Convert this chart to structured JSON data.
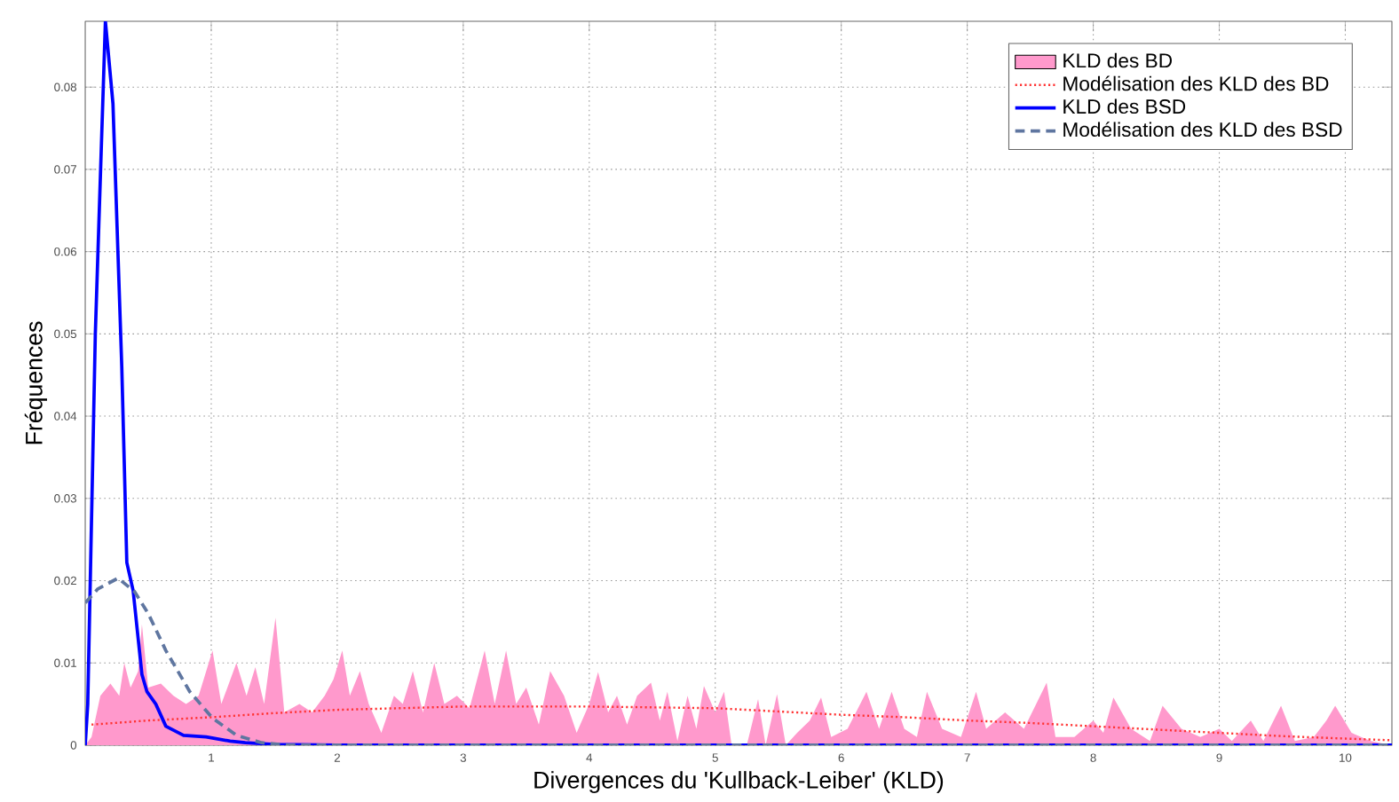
{
  "chart_data": {
    "type": "line",
    "xlabel": "Divergences du 'Kullback-Leiber' (KLD)",
    "ylabel": "Fréquences",
    "xlim": [
      0,
      10.37
    ],
    "ylim": [
      0,
      0.088
    ],
    "xticks": [
      1,
      2,
      3,
      4,
      5,
      6,
      7,
      8,
      9,
      10
    ],
    "yticks": [
      0,
      0.01,
      0.02,
      0.03,
      0.04,
      0.05,
      0.06,
      0.07,
      0.08
    ],
    "grid": true,
    "legend": "top right",
    "marker": "none",
    "series": [
      {
        "name": "KLD des BD",
        "type": "area",
        "color": "#ff99cc",
        "x": [
          0,
          0.05,
          0.12,
          0.2,
          0.27,
          0.31,
          0.36,
          0.42,
          0.45,
          0.5,
          0.6,
          0.7,
          0.8,
          0.9,
          1.01,
          1.08,
          1.2,
          1.28,
          1.35,
          1.42,
          1.51,
          1.58,
          1.7,
          1.8,
          1.9,
          1.97,
          2.04,
          2.1,
          2.18,
          2.25,
          2.35,
          2.45,
          2.52,
          2.6,
          2.68,
          2.77,
          2.85,
          2.95,
          3.05,
          3.17,
          3.25,
          3.34,
          3.42,
          3.5,
          3.6,
          3.69,
          3.8,
          3.9,
          4.0,
          4.07,
          4.15,
          4.22,
          4.3,
          4.38,
          4.49,
          4.56,
          4.62,
          4.7,
          4.78,
          4.85,
          4.91,
          5.0,
          5.07,
          5.13,
          5.25,
          5.34,
          5.4,
          5.49,
          5.56,
          5.65,
          5.75,
          5.84,
          5.92,
          6.05,
          6.2,
          6.3,
          6.4,
          6.5,
          6.6,
          6.68,
          6.8,
          6.95,
          7.07,
          7.15,
          7.3,
          7.45,
          7.63,
          7.7,
          7.85,
          8.0,
          8.08,
          8.16,
          8.3,
          8.45,
          8.55,
          8.7,
          8.85,
          9.0,
          9.1,
          9.25,
          9.35,
          9.49,
          9.6,
          9.75,
          9.85,
          9.92,
          10.05,
          10.2,
          10.37
        ],
        "values": [
          0,
          0.001,
          0.006,
          0.0075,
          0.006,
          0.01,
          0.007,
          0.009,
          0.0147,
          0.007,
          0.0075,
          0.006,
          0.005,
          0.006,
          0.0115,
          0.005,
          0.01,
          0.006,
          0.0095,
          0.005,
          0.0155,
          0.004,
          0.005,
          0.004,
          0.006,
          0.008,
          0.0115,
          0.006,
          0.009,
          0.005,
          0.0015,
          0.006,
          0.005,
          0.009,
          0.004,
          0.01,
          0.005,
          0.006,
          0.0045,
          0.0115,
          0.005,
          0.0115,
          0.005,
          0.007,
          0.0025,
          0.009,
          0.006,
          0.0015,
          0.005,
          0.0089,
          0.004,
          0.006,
          0.0025,
          0.006,
          0.0076,
          0.003,
          0.0065,
          0.0005,
          0.006,
          0.002,
          0.0072,
          0.004,
          0.0065,
          0,
          0,
          0.0056,
          0,
          0.0062,
          0,
          0.0015,
          0.003,
          0.0058,
          0.001,
          0.002,
          0.0065,
          0.002,
          0.0065,
          0.002,
          0.001,
          0.0065,
          0.002,
          0.001,
          0.0065,
          0.002,
          0.004,
          0.002,
          0.0076,
          0.001,
          0.001,
          0.003,
          0.0015,
          0.0058,
          0.002,
          0.0005,
          0.0048,
          0.002,
          0.001,
          0.002,
          0.0005,
          0.003,
          0.0005,
          0.0048,
          0.0005,
          0.001,
          0.003,
          0.0048,
          0.0015,
          0.0005,
          0
        ]
      },
      {
        "name": "Modélisation des KLD des BD",
        "line_style": "dotted",
        "color": "#ff3333",
        "x": [
          0.05,
          0.5,
          1,
          1.5,
          2,
          2.5,
          3,
          3.5,
          4,
          4.5,
          5,
          5.5,
          6,
          6.5,
          7,
          7.5,
          8,
          8.5,
          9,
          9.5,
          10,
          10.37
        ],
        "values": [
          0.0025,
          0.003,
          0.0034,
          0.0039,
          0.0043,
          0.0045,
          0.0047,
          0.0047,
          0.0047,
          0.0046,
          0.0045,
          0.0041,
          0.0037,
          0.0034,
          0.003,
          0.0027,
          0.0023,
          0.0019,
          0.0015,
          0.0011,
          0.0008,
          0.0006
        ]
      },
      {
        "name": "KLD des BSD",
        "line_style": "solid",
        "color": "#0000ff",
        "x": [
          0,
          0.02,
          0.08,
          0.16,
          0.22,
          0.29,
          0.33,
          0.38,
          0.45,
          0.49,
          0.56,
          0.64,
          0.78,
          0.96,
          1.15,
          1.27,
          1.5,
          2,
          3,
          4,
          5,
          6,
          7,
          8,
          9,
          10,
          10.37
        ],
        "values": [
          0,
          0.005,
          0.05,
          0.088,
          0.078,
          0.046,
          0.0222,
          0.0188,
          0.0086,
          0.0065,
          0.005,
          0.0023,
          0.0012,
          0.001,
          0.0005,
          0.0003,
          0.0001,
          0,
          0,
          0,
          0,
          0,
          0,
          0,
          0,
          0,
          0
        ]
      },
      {
        "name": "Modélisation des KLD des BSD",
        "line_style": "dashed",
        "color": "#5f76a0",
        "x": [
          0,
          0.1,
          0.26,
          0.39,
          0.5,
          0.64,
          0.83,
          1.01,
          1.2,
          1.4,
          1.6,
          2,
          4,
          6,
          8,
          10,
          10.37
        ],
        "values": [
          0.0173,
          0.019,
          0.0203,
          0.0187,
          0.016,
          0.0115,
          0.0065,
          0.0033,
          0.0012,
          0.0003,
          0,
          0,
          0,
          0,
          0,
          0,
          0
        ]
      }
    ]
  }
}
